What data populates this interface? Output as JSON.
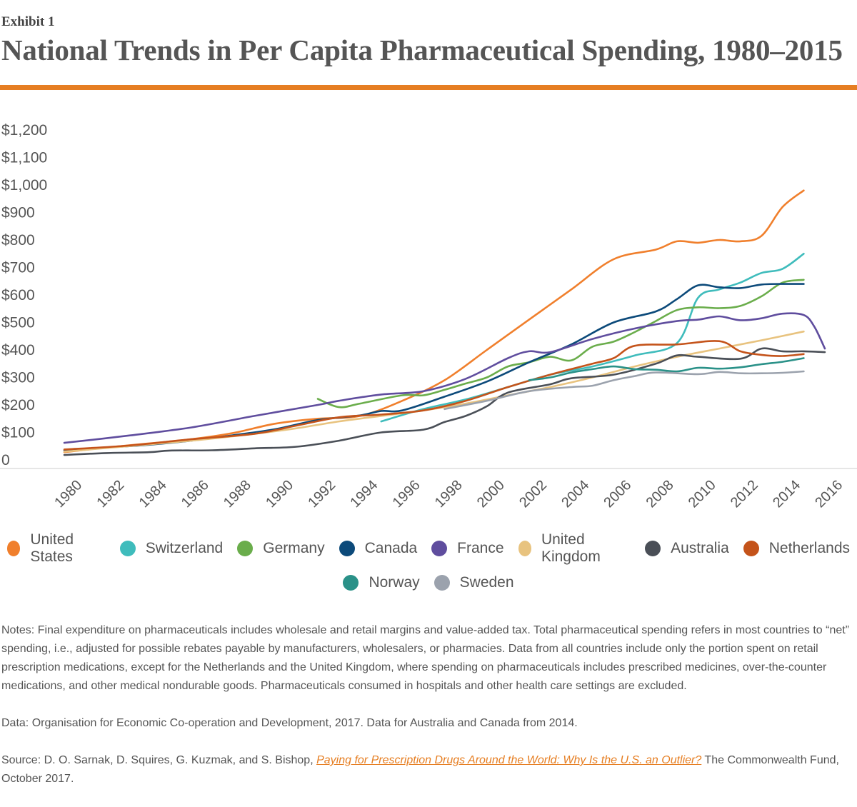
{
  "header": {
    "exhibit": "Exhibit 1",
    "title": "National Trends in Per Capita Pharmaceutical Spending, 1980–2015"
  },
  "accent_color": "#e67e22",
  "chart_data": {
    "type": "line",
    "title": "National Trends in Per Capita Pharmaceutical Spending, 1980–2015",
    "xlabel": "",
    "ylabel": "",
    "xlim": [
      1980,
      2016
    ],
    "ylim": [
      0,
      1200
    ],
    "x_ticks": [
      "1980",
      "1982",
      "1984",
      "1986",
      "1988",
      "1990",
      "1992",
      "1994",
      "1996",
      "1998",
      "2000",
      "2002",
      "2004",
      "2006",
      "2008",
      "2010",
      "2012",
      "2014",
      "2016"
    ],
    "y_ticks": [
      "0",
      "$100",
      "$200",
      "$300",
      "$400",
      "$500",
      "$600",
      "$700",
      "$800",
      "$900",
      "$1,000",
      "$1,100",
      "$1,200"
    ],
    "grid": false,
    "legend_position": "bottom",
    "series": [
      {
        "name": "United States",
        "color": "#f07f2c",
        "points": [
          [
            1980,
            28
          ],
          [
            1982,
            45
          ],
          [
            1984,
            60
          ],
          [
            1986,
            75
          ],
          [
            1988,
            98
          ],
          [
            1990,
            132
          ],
          [
            1992,
            150
          ],
          [
            1994,
            160
          ],
          [
            1996,
            215
          ],
          [
            1998,
            290
          ],
          [
            2000,
            400
          ],
          [
            2002,
            510
          ],
          [
            2004,
            620
          ],
          [
            2006,
            730
          ],
          [
            2008,
            765
          ],
          [
            2009,
            795
          ],
          [
            2010,
            790
          ],
          [
            2011,
            800
          ],
          [
            2012,
            795
          ],
          [
            2013,
            815
          ],
          [
            2014,
            920
          ],
          [
            2015,
            980
          ]
        ]
      },
      {
        "name": "Switzerland",
        "color": "#3fbcbc",
        "points": [
          [
            1995,
            140
          ],
          [
            1997,
            185
          ],
          [
            1999,
            220
          ],
          [
            2001,
            265
          ],
          [
            2003,
            310
          ],
          [
            2005,
            340
          ],
          [
            2007,
            380
          ],
          [
            2009,
            425
          ],
          [
            2010,
            590
          ],
          [
            2011,
            620
          ],
          [
            2012,
            645
          ],
          [
            2013,
            680
          ],
          [
            2014,
            695
          ],
          [
            2015,
            750
          ]
        ]
      },
      {
        "name": "Germany",
        "color": "#6aad4b",
        "points": [
          [
            1992,
            222
          ],
          [
            1993,
            192
          ],
          [
            1994,
            205
          ],
          [
            1996,
            235
          ],
          [
            1997,
            235
          ],
          [
            1998,
            255
          ],
          [
            1999,
            278
          ],
          [
            2000,
            300
          ],
          [
            2001,
            340
          ],
          [
            2002,
            355
          ],
          [
            2003,
            375
          ],
          [
            2004,
            362
          ],
          [
            2005,
            412
          ],
          [
            2006,
            430
          ],
          [
            2007,
            465
          ],
          [
            2008,
            505
          ],
          [
            2009,
            545
          ],
          [
            2010,
            555
          ],
          [
            2011,
            552
          ],
          [
            2012,
            560
          ],
          [
            2013,
            595
          ],
          [
            2014,
            645
          ],
          [
            2015,
            655
          ]
        ]
      },
      {
        "name": "Canada",
        "color": "#0c4a7a",
        "points": [
          [
            1980,
            35
          ],
          [
            1982,
            45
          ],
          [
            1984,
            55
          ],
          [
            1986,
            70
          ],
          [
            1988,
            90
          ],
          [
            1990,
            112
          ],
          [
            1992,
            145
          ],
          [
            1994,
            162
          ],
          [
            1995,
            178
          ],
          [
            1996,
            180
          ],
          [
            1998,
            230
          ],
          [
            2000,
            285
          ],
          [
            2002,
            355
          ],
          [
            2004,
            420
          ],
          [
            2006,
            500
          ],
          [
            2008,
            540
          ],
          [
            2009,
            585
          ],
          [
            2010,
            635
          ],
          [
            2011,
            628
          ],
          [
            2012,
            625
          ],
          [
            2013,
            638
          ],
          [
            2014,
            640
          ],
          [
            2015,
            640
          ]
        ]
      },
      {
        "name": "France",
        "color": "#5f4d9e",
        "points": [
          [
            1980,
            62
          ],
          [
            1983,
            88
          ],
          [
            1986,
            118
          ],
          [
            1989,
            160
          ],
          [
            1992,
            200
          ],
          [
            1993,
            215
          ],
          [
            1995,
            238
          ],
          [
            1997,
            250
          ],
          [
            1999,
            295
          ],
          [
            2001,
            370
          ],
          [
            2002,
            395
          ],
          [
            2003,
            392
          ],
          [
            2005,
            440
          ],
          [
            2007,
            478
          ],
          [
            2009,
            505
          ],
          [
            2010,
            510
          ],
          [
            2011,
            522
          ],
          [
            2012,
            508
          ],
          [
            2013,
            515
          ],
          [
            2014,
            532
          ],
          [
            2015,
            527
          ],
          [
            2015.5,
            485
          ],
          [
            2016,
            405
          ]
        ]
      },
      {
        "name": "United Kingdom",
        "color": "#e8c37f",
        "points": [
          [
            1980,
            30
          ],
          [
            1983,
            50
          ],
          [
            1986,
            70
          ],
          [
            1989,
            95
          ],
          [
            1991,
            115
          ],
          [
            1993,
            140
          ],
          [
            1995,
            160
          ],
          [
            1997,
            180
          ],
          [
            1999,
            205
          ],
          [
            2001,
            235
          ],
          [
            2003,
            265
          ],
          [
            2005,
            300
          ],
          [
            2007,
            340
          ],
          [
            2009,
            375
          ],
          [
            2011,
            405
          ],
          [
            2013,
            435
          ],
          [
            2015,
            467
          ]
        ]
      },
      {
        "name": "Australia",
        "color": "#4a4f57",
        "points": [
          [
            1980,
            18
          ],
          [
            1982,
            25
          ],
          [
            1984,
            28
          ],
          [
            1985,
            34
          ],
          [
            1987,
            35
          ],
          [
            1989,
            42
          ],
          [
            1991,
            48
          ],
          [
            1993,
            70
          ],
          [
            1995,
            100
          ],
          [
            1997,
            110
          ],
          [
            1998,
            138
          ],
          [
            1999,
            160
          ],
          [
            2000,
            195
          ],
          [
            2001,
            245
          ],
          [
            2003,
            275
          ],
          [
            2004,
            297
          ],
          [
            2006,
            310
          ],
          [
            2008,
            350
          ],
          [
            2009,
            380
          ],
          [
            2010,
            375
          ],
          [
            2012,
            368
          ],
          [
            2013,
            405
          ],
          [
            2014,
            395
          ],
          [
            2015,
            395
          ],
          [
            2016,
            392
          ]
        ]
      },
      {
        "name": "Netherlands",
        "color": "#c4531a",
        "points": [
          [
            1980,
            38
          ],
          [
            1983,
            52
          ],
          [
            1986,
            75
          ],
          [
            1989,
            95
          ],
          [
            1991,
            125
          ],
          [
            1993,
            155
          ],
          [
            1995,
            165
          ],
          [
            1997,
            180
          ],
          [
            1999,
            215
          ],
          [
            2001,
            265
          ],
          [
            2003,
            310
          ],
          [
            2005,
            350
          ],
          [
            2006,
            370
          ],
          [
            2007,
            415
          ],
          [
            2009,
            420
          ],
          [
            2011,
            432
          ],
          [
            2012,
            395
          ],
          [
            2013,
            382
          ],
          [
            2014,
            378
          ],
          [
            2015,
            385
          ]
        ]
      },
      {
        "name": "Norway",
        "color": "#2a9188",
        "points": [
          [
            2002,
            290
          ],
          [
            2003,
            300
          ],
          [
            2004,
            318
          ],
          [
            2005,
            330
          ],
          [
            2006,
            340
          ],
          [
            2007,
            330
          ],
          [
            2008,
            328
          ],
          [
            2009,
            322
          ],
          [
            2010,
            335
          ],
          [
            2011,
            332
          ],
          [
            2012,
            337
          ],
          [
            2013,
            348
          ],
          [
            2014,
            357
          ],
          [
            2015,
            370
          ]
        ]
      },
      {
        "name": "Sweden",
        "color": "#9ba2ad",
        "points": [
          [
            1998,
            185
          ],
          [
            2000,
            215
          ],
          [
            2002,
            250
          ],
          [
            2004,
            265
          ],
          [
            2005,
            270
          ],
          [
            2006,
            290
          ],
          [
            2007,
            305
          ],
          [
            2008,
            318
          ],
          [
            2010,
            312
          ],
          [
            2011,
            320
          ],
          [
            2012,
            315
          ],
          [
            2013,
            315
          ],
          [
            2014,
            317
          ],
          [
            2015,
            322
          ]
        ]
      }
    ]
  },
  "legend": {
    "row1": [
      "United States",
      "Switzerland",
      "Germany",
      "Canada",
      "France",
      "United Kingdom",
      "Australia",
      "Netherlands"
    ],
    "row2": [
      "Norway",
      "Sweden"
    ]
  },
  "notes": {
    "notes_text": "Notes: Final expenditure on pharmaceuticals includes wholesale and retail margins and value-added tax. Total pharmaceutical spending refers in most countries to “net” spending, i.e., adjusted for possible rebates payable by manufacturers, wholesalers, or pharmacies. Data from all countries include only the portion spent on retail prescription medications, except for the Netherlands and the United Kingdom, where spending on pharmaceuticals includes prescribed medicines, over-the-counter medications, and other medical nondurable goods. Pharmaceuticals consumed in hospitals and other health care settings are excluded.",
    "data_text": "Data: Organisation for Economic Co-operation and Development, 2017. Data for Australia and Canada from 2014.",
    "source_prefix": "Source: D. O. Sarnak, D. Squires, G. Kuzmak, and S. Bishop, ",
    "source_link": "Paying for Prescription Drugs Around the World: Why Is the U.S. an Outlier?",
    "source_suffix": " The Commonwealth Fund, October 2017."
  }
}
